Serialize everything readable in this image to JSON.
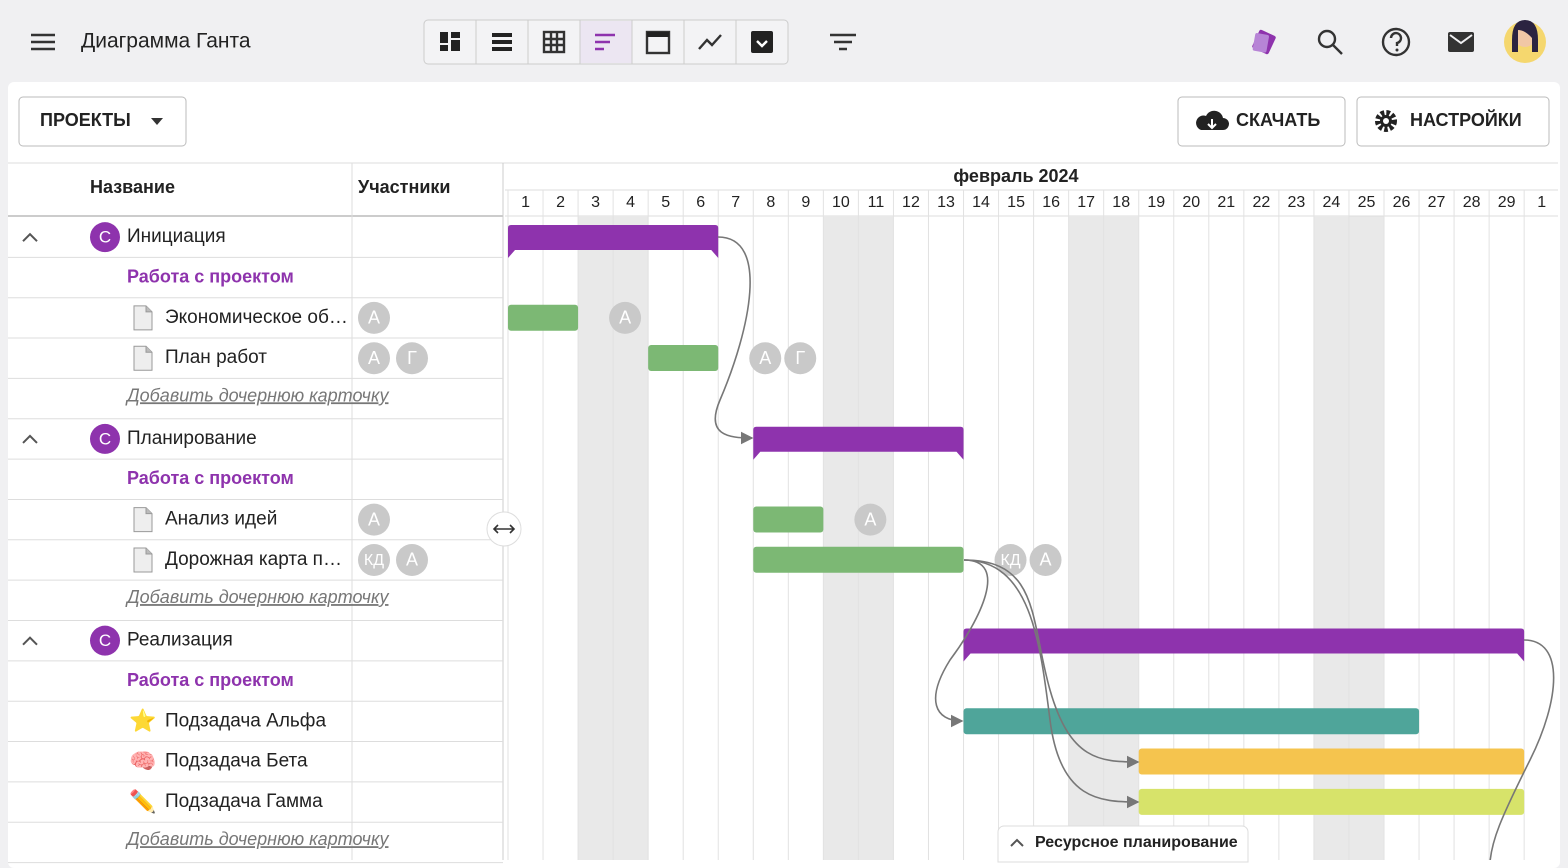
{
  "header": {
    "title": "Диаграмма Ганта"
  },
  "toolbar": {
    "projects": "ПРОЕКТЫ",
    "download": "СКАЧАТЬ",
    "settings": "НАСТРОЙКИ"
  },
  "table": {
    "columns": [
      "Название",
      "Участники"
    ]
  },
  "timeline": {
    "month": "февраль 2024",
    "days": [
      1,
      2,
      3,
      4,
      5,
      6,
      7,
      8,
      9,
      10,
      11,
      12,
      13,
      14,
      15,
      16,
      17,
      18,
      19,
      20,
      21,
      22,
      23,
      24,
      25,
      26,
      27,
      28,
      29,
      1
    ],
    "shaded_days": [
      3,
      4,
      10,
      11,
      17,
      18,
      24,
      25
    ]
  },
  "groups": [
    {
      "avatar": "С",
      "name": "Инициация",
      "start": 1,
      "end": 6,
      "color": "#8e33ad",
      "subheader": "Работа с проектом",
      "tasks": [
        {
          "name": "Экономическое об…",
          "members": [
            "А"
          ],
          "start": 1,
          "end": 2,
          "color": "#7cb874"
        },
        {
          "name": "План работ",
          "members": [
            "А",
            "Г"
          ],
          "start": 5,
          "end": 6,
          "color": "#7cb874"
        }
      ],
      "add_link": "Добавить дочернюю карточку"
    },
    {
      "avatar": "С",
      "name": "Планирование",
      "start": 8,
      "end": 13,
      "color": "#8e33ad",
      "subheader": "Работа с проектом",
      "tasks": [
        {
          "name": "Анализ идей",
          "members": [
            "А"
          ],
          "start": 8,
          "end": 9,
          "color": "#7cb874"
        },
        {
          "name": "Дорожная карта п…",
          "members": [
            "КД",
            "А"
          ],
          "start": 8,
          "end": 13,
          "color": "#7cb874"
        }
      ],
      "add_link": "Добавить дочернюю карточку"
    },
    {
      "avatar": "С",
      "name": "Реализация",
      "start": 14,
      "end": 29,
      "color": "#8e33ad",
      "subheader": "Работа с проектом",
      "tasks": [
        {
          "name": "Подзадача Альфа",
          "icon": "⭐",
          "members": [],
          "start": 14,
          "end": 26,
          "color": "#4fa59a"
        },
        {
          "name": "Подзадача Бета",
          "icon": "🧠",
          "members": [],
          "start": 19,
          "end": 29,
          "color": "#f5c44e"
        },
        {
          "name": "Подзадача Гамма",
          "icon": "✏️",
          "members": [],
          "start": 19,
          "end": 29,
          "color": "#d7e36a"
        }
      ],
      "add_link": "Добавить дочернюю карточку"
    }
  ],
  "footer": {
    "resource_planning": "Ресурсное планирование"
  }
}
